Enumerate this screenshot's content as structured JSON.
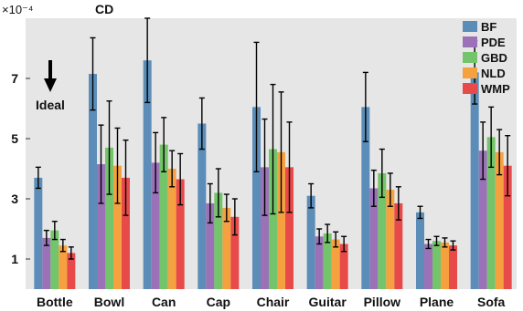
{
  "chart_data": {
    "type": "bar",
    "title": "CD",
    "y_exponent_label": "×10⁻⁴",
    "ylim": [
      0,
      9.0
    ],
    "yticks": [
      1,
      3,
      5,
      7
    ],
    "categories": [
      "Bottle",
      "Bowl",
      "Can",
      "Cap",
      "Chair",
      "Guitar",
      "Pillow",
      "Plane",
      "Sofa"
    ],
    "series": [
      {
        "name": "BF",
        "color": "#5b8db8",
        "values": [
          3.7,
          7.15,
          7.6,
          5.5,
          6.05,
          3.1,
          6.05,
          2.55,
          7.2
        ],
        "errors": [
          0.35,
          1.2,
          1.4,
          0.85,
          2.15,
          0.4,
          1.15,
          0.2,
          1.05
        ]
      },
      {
        "name": "PDE",
        "color": "#9b72b8",
        "values": [
          1.7,
          4.15,
          4.2,
          2.85,
          4.05,
          1.75,
          3.35,
          1.5,
          4.6
        ],
        "errors": [
          0.25,
          1.3,
          1.0,
          0.65,
          1.6,
          0.25,
          0.6,
          0.15,
          0.95
        ]
      },
      {
        "name": "GBD",
        "color": "#73c46a",
        "values": [
          1.95,
          4.7,
          4.8,
          3.2,
          4.65,
          1.85,
          3.85,
          1.6,
          5.05
        ],
        "errors": [
          0.3,
          1.55,
          0.9,
          0.8,
          2.15,
          0.3,
          0.8,
          0.15,
          1.0
        ]
      },
      {
        "name": "NLD",
        "color": "#f5a140",
        "values": [
          1.45,
          4.1,
          4.0,
          2.7,
          4.55,
          1.65,
          3.3,
          1.55,
          4.55
        ],
        "errors": [
          0.2,
          1.25,
          0.6,
          0.45,
          2.0,
          0.25,
          0.55,
          0.15,
          0.75
        ]
      },
      {
        "name": "WMP",
        "color": "#e84a4a",
        "values": [
          1.2,
          3.7,
          3.65,
          2.4,
          4.05,
          1.5,
          2.85,
          1.45,
          4.1
        ],
        "errors": [
          0.2,
          1.25,
          0.85,
          0.6,
          1.5,
          0.25,
          0.55,
          0.15,
          1.0
        ]
      }
    ],
    "legend_position": "top-right",
    "grid": false,
    "annotation": {
      "text": "Ideal",
      "arrow": "down"
    }
  }
}
